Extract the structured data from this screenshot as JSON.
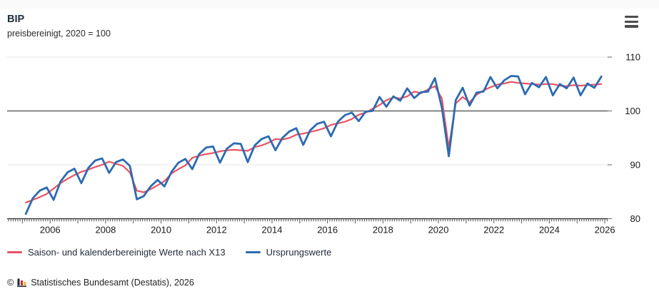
{
  "header": {
    "title": "BIP",
    "subtitle": "preisbereinigt, 2020 = 100",
    "menu_icon": "hamburger-menu-icon"
  },
  "chart_data": {
    "type": "line",
    "title": "BIP",
    "subtitle": "preisbereinigt, 2020 = 100",
    "x_unit": "quarter",
    "x_start_year": 2005,
    "x_start_quarter": 1,
    "x_step_years": 0.25,
    "x_axis": {
      "range": [
        2004.45,
        2026.1
      ],
      "labeled_years": [
        2006,
        2008,
        2010,
        2012,
        2014,
        2016,
        2018,
        2020,
        2022,
        2024,
        2026
      ],
      "minor_tick_interval": "month"
    },
    "y_axis": {
      "range": [
        80,
        110
      ],
      "ticks": [
        110,
        100,
        90,
        80
      ],
      "baseline": 100,
      "grid": true
    },
    "legend_position": "bottom",
    "series": [
      {
        "name": "Saison- und kalenderbereinigte Werte nach X13",
        "color": "#e85363",
        "values": [
          83.0,
          83.5,
          84.0,
          84.6,
          85.6,
          86.6,
          87.4,
          88.1,
          88.7,
          89.1,
          89.6,
          90.0,
          90.6,
          90.2,
          89.8,
          88.6,
          85.2,
          84.9,
          85.5,
          86.2,
          87.0,
          88.4,
          89.2,
          89.9,
          91.3,
          91.7,
          92.0,
          92.2,
          92.5,
          92.7,
          92.8,
          92.7,
          92.6,
          93.3,
          93.6,
          94.1,
          94.8,
          94.7,
          95.0,
          95.6,
          95.8,
          96.1,
          96.4,
          96.8,
          97.4,
          97.7,
          98.0,
          98.5,
          99.3,
          99.7,
          100.4,
          101.1,
          102.0,
          102.5,
          102.3,
          102.7,
          103.6,
          103.3,
          104.0,
          104.6,
          102.3,
          93.2,
          101.4,
          102.6,
          101.6,
          103.0,
          103.8,
          104.4,
          104.9,
          105.1,
          105.4,
          105.2,
          105.1,
          105.0,
          104.9,
          105.0,
          105.0,
          104.7,
          104.6,
          104.8,
          104.7,
          104.8,
          104.9,
          105.0
        ]
      },
      {
        "name": "Ursprungswerte",
        "color": "#2d6ab2",
        "values": [
          80.9,
          83.8,
          85.2,
          85.8,
          83.5,
          86.9,
          88.6,
          89.3,
          86.6,
          89.4,
          90.8,
          91.2,
          88.5,
          90.5,
          91.0,
          89.8,
          83.6,
          84.2,
          86.0,
          87.2,
          86.0,
          88.7,
          90.4,
          91.1,
          89.2,
          92.0,
          93.2,
          93.4,
          90.4,
          93.0,
          94.0,
          93.9,
          90.5,
          93.6,
          94.8,
          95.3,
          92.7,
          95.0,
          96.2,
          96.8,
          93.7,
          96.4,
          97.6,
          98.0,
          95.3,
          98.0,
          99.2,
          99.7,
          98.1,
          99.9,
          100.0,
          102.6,
          100.8,
          102.7,
          101.9,
          104.2,
          102.4,
          103.5,
          103.6,
          106.1,
          100.6,
          91.6,
          102.0,
          104.3,
          101.0,
          103.4,
          103.6,
          106.3,
          104.2,
          105.7,
          106.5,
          106.4,
          103.1,
          105.2,
          104.4,
          106.3,
          102.9,
          105.0,
          104.2,
          106.2,
          102.9,
          105.1,
          104.3,
          106.4
        ]
      }
    ]
  },
  "footer": {
    "copyright_symbol": "©",
    "logo": "destatis-bars-logo",
    "source_text": "Statistisches Bundesamt (Destatis), 2026"
  },
  "colors": {
    "adjusted_line": "#e85363",
    "raw_line": "#2d6ab2",
    "baseline": "#262626",
    "gridline": "#e7e7e7",
    "axis": "#262626",
    "tick_label": "#1a1a1a"
  }
}
